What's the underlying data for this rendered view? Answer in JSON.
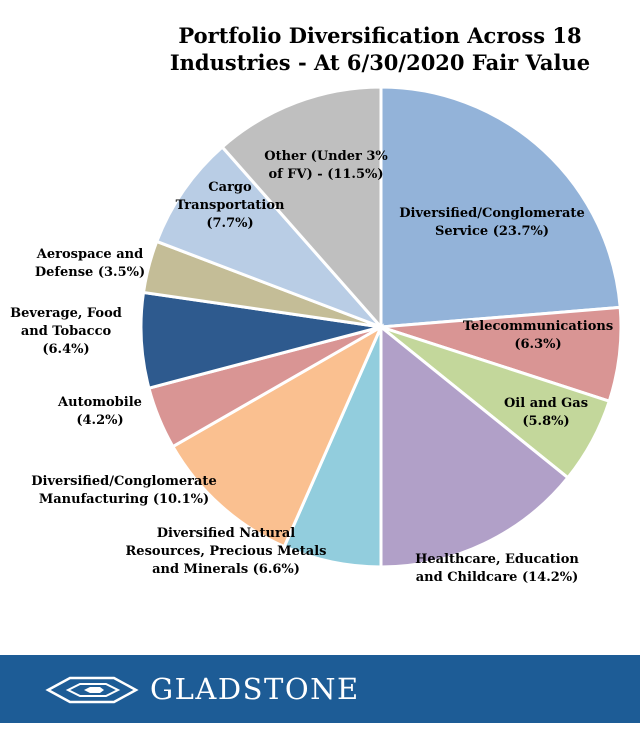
{
  "chart_data": {
    "type": "pie",
    "title_lines": [
      "Portfolio Diversification Across 18",
      "Industries - At 6/30/2020 Fair Value"
    ],
    "slices": [
      {
        "label_lines": [
          "Diversified/Conglomerate",
          "Service (23.7%)"
        ],
        "value": 23.7,
        "color": "#93b3d9"
      },
      {
        "label_lines": [
          "Telecommunications",
          "(6.3%)"
        ],
        "value": 6.3,
        "color": "#d99594"
      },
      {
        "label_lines": [
          "Oil and Gas",
          "(5.8%)"
        ],
        "value": 5.8,
        "color": "#c3d79b"
      },
      {
        "label_lines": [
          "Healthcare, Education",
          "and Childcare (14.2%)"
        ],
        "value": 14.2,
        "color": "#b1a0c8"
      },
      {
        "label_lines": [
          "Diversified Natural",
          "Resources, Precious Metals",
          "and Minerals (6.6%)"
        ],
        "value": 6.6,
        "color": "#92cddd"
      },
      {
        "label_lines": [
          "Diversified/Conglomerate",
          "Manufacturing (10.1%)"
        ],
        "value": 10.1,
        "color": "#fac090"
      },
      {
        "label_lines": [
          "Automobile",
          "(4.2%)"
        ],
        "value": 4.2,
        "color": "#d99594"
      },
      {
        "label_lines": [
          "Beverage, Food",
          "and Tobacco",
          "(6.4%)"
        ],
        "value": 6.4,
        "color": "#2e5a8e"
      },
      {
        "label_lines": [
          "Aerospace and",
          "Defense (3.5%)"
        ],
        "value": 3.5,
        "color": "#c4bd97"
      },
      {
        "label_lines": [
          "Cargo",
          "Transportation",
          "(7.7%)"
        ],
        "value": 7.7,
        "color": "#b9cde5"
      },
      {
        "label_lines": [
          "Other (Under 3%",
          "of FV) - (11.5%)"
        ],
        "value": 11.5,
        "color": "#bfbfbf"
      }
    ]
  },
  "footer": {
    "brand": "GLADSTONE",
    "background_color": "#1d5c96",
    "icon": "gladstone-chevron-logo-icon"
  }
}
